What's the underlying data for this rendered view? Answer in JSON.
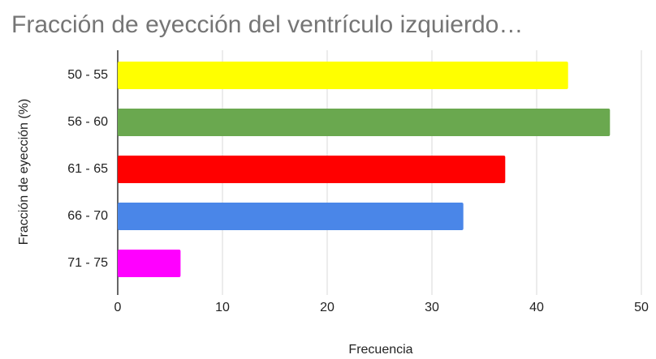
{
  "chart_data": {
    "type": "bar",
    "orientation": "horizontal",
    "title": "Fracción de eyección del ventrículo izquierdo…",
    "x_label": "Frecuencia",
    "y_label": "Fracción de eyección (%)",
    "categories": [
      "50 - 55",
      "56 - 60",
      "61 - 65",
      "66 - 70",
      "71 - 75"
    ],
    "values": [
      43,
      47,
      37,
      33,
      6
    ],
    "colors": [
      "#ffff00",
      "#6aa84f",
      "#ff0000",
      "#4a86e8",
      "#ff00ff"
    ],
    "xlim": [
      0,
      50
    ],
    "xticks": [
      0,
      10,
      20,
      30,
      40,
      50
    ],
    "grid": true
  }
}
